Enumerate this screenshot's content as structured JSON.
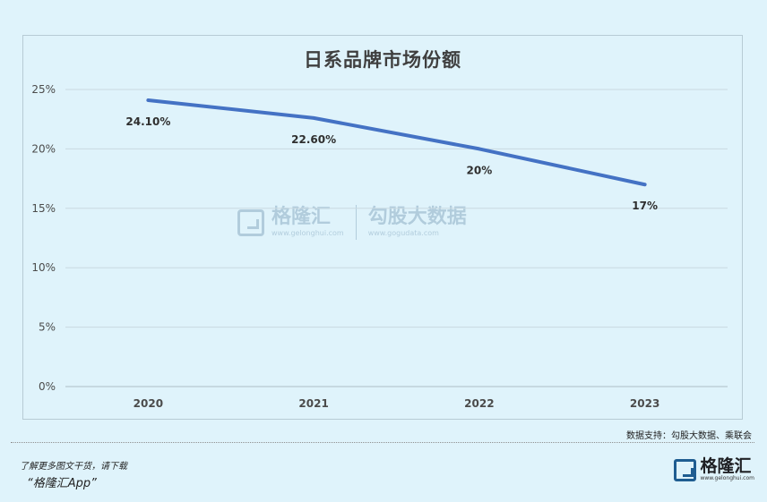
{
  "chart_data": {
    "type": "line",
    "title": "日系品牌市场份额",
    "categories": [
      "2020",
      "2021",
      "2022",
      "2023"
    ],
    "series": [
      {
        "values": [
          24.1,
          22.6,
          20,
          17
        ],
        "labels": [
          "24.10%",
          "22.60%",
          "20%",
          "17%"
        ],
        "color": "#4472c4"
      }
    ],
    "y_ticks": [
      "0%",
      "5%",
      "10%",
      "15%",
      "20%",
      "25%"
    ],
    "ylim": [
      0,
      25
    ],
    "grid": true
  },
  "footer": {
    "source": "数据支持：勾股大数据、乘联会",
    "promo": "了解更多图文干货，请下载",
    "promo_app": "“格隆汇App”",
    "brand_name": "格隆汇",
    "brand_url": "www.gelonghui.com"
  },
  "watermark": {
    "left_name": "格隆汇",
    "left_url": "www.gelonghui.com",
    "right_name": "勾股大数据",
    "right_url": "www.gogudata.com"
  },
  "colors": {
    "background": "#dff3fb",
    "line": "#4472c4",
    "gridline": "#c9d9e1",
    "axis": "#aebcc5"
  }
}
